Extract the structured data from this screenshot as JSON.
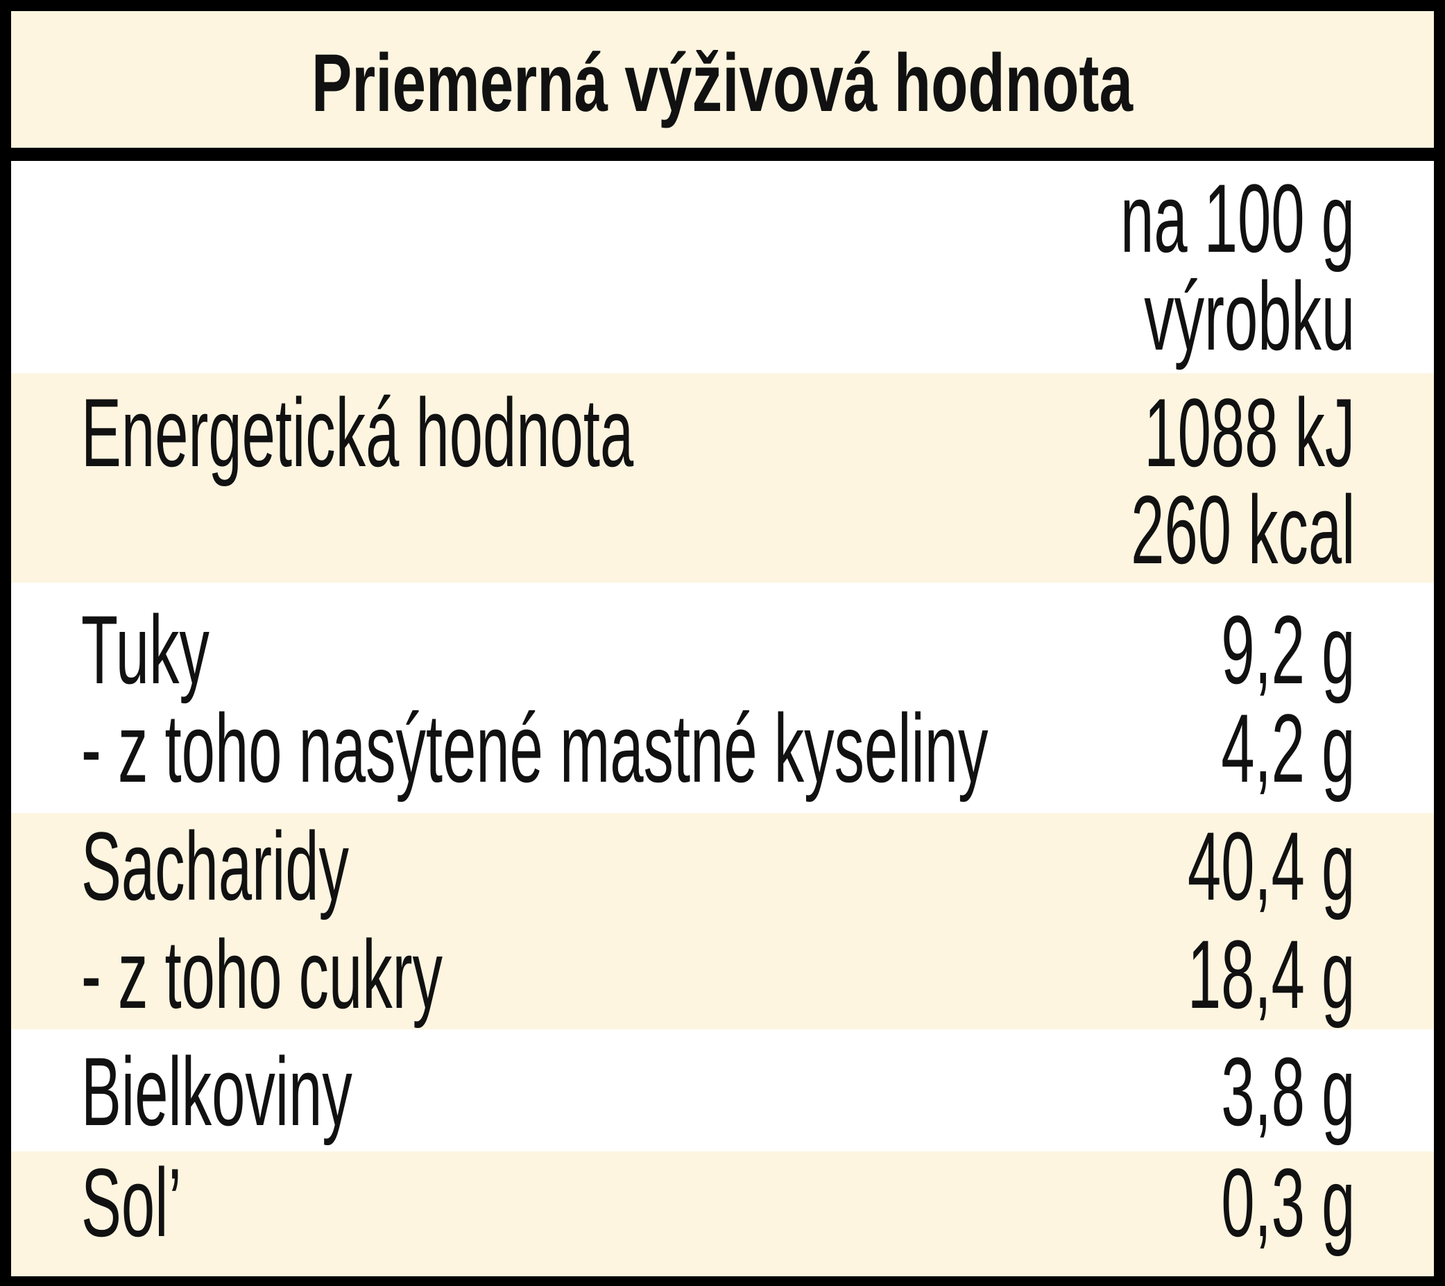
{
  "title": "Priemerná výživová hodnota",
  "header": {
    "value": [
      "na 100 g",
      "výrobku"
    ]
  },
  "rows": [
    {
      "label": [
        "Energetická hodnota"
      ],
      "value": [
        "1088 kJ",
        "260 kcal"
      ]
    },
    {
      "label": [
        "Tuky",
        "- z toho nasýtené mastné kyseliny"
      ],
      "value": [
        "9,2 g",
        "4,2 g"
      ]
    },
    {
      "label": [
        "Sacharidy",
        "- z toho cukry"
      ],
      "value": [
        "40,4 g",
        "18,4 g"
      ]
    },
    {
      "label": [
        "Bielkoviny"
      ],
      "value": [
        "3,8 g"
      ]
    },
    {
      "label": [
        "Sol’"
      ],
      "value": [
        "0,3 g"
      ]
    }
  ]
}
